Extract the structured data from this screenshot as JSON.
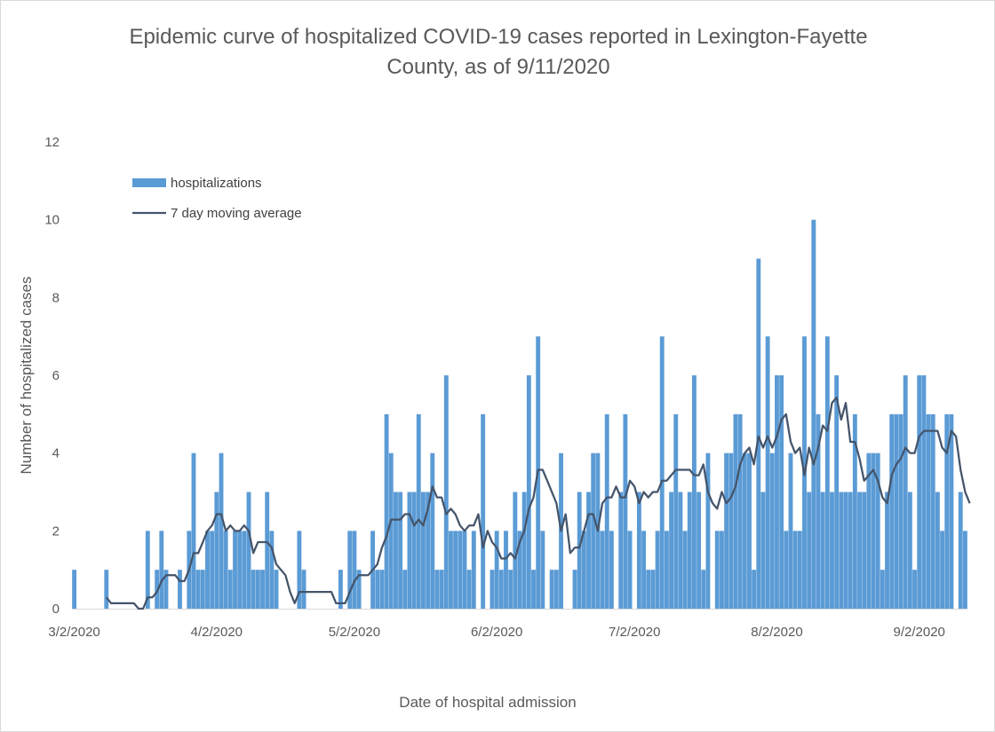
{
  "chart_data": {
    "type": "bar",
    "title_line1": "Epidemic curve of hospitalized COVID-19 cases reported in Lexington-Fayette",
    "title_line2": "County, as of 9/11/2020",
    "xlabel": "Date of hospital admission",
    "ylabel": "Number of hospitalized cases",
    "ylim": [
      0,
      12
    ],
    "yticks": [
      0,
      2,
      4,
      6,
      8,
      10,
      12
    ],
    "xtick_labels": [
      "3/2/2020",
      "4/2/2020",
      "5/2/2020",
      "6/2/2020",
      "7/2/2020",
      "8/2/2020",
      "9/2/2020"
    ],
    "xtick_day_index": [
      0,
      31,
      61,
      92,
      122,
      153,
      184
    ],
    "grid": false,
    "legend": {
      "position": "top-left",
      "entries": [
        "hospitalizations",
        "7 day moving average"
      ]
    },
    "colors": {
      "bars": "#5b9bd5",
      "line": "#44546a"
    },
    "start_date": "3/2/2020",
    "series": [
      {
        "name": "hospitalizations",
        "type": "bar",
        "values": [
          1,
          0,
          0,
          0,
          0,
          0,
          0,
          1,
          0,
          0,
          0,
          0,
          0,
          0,
          0,
          0,
          2,
          0,
          1,
          2,
          1,
          0,
          0,
          1,
          0,
          2,
          4,
          1,
          1,
          2,
          2,
          3,
          4,
          2,
          1,
          2,
          2,
          2,
          3,
          1,
          1,
          1,
          3,
          2,
          1,
          0,
          0,
          0,
          0,
          2,
          1,
          0,
          0,
          0,
          0,
          0,
          0,
          0,
          1,
          0,
          2,
          2,
          1,
          0,
          0,
          2,
          1,
          1,
          5,
          4,
          3,
          3,
          1,
          3,
          3,
          5,
          3,
          3,
          4,
          1,
          1,
          6,
          2,
          2,
          2,
          2,
          1,
          2,
          0,
          5,
          0,
          1,
          2,
          1,
          2,
          1,
          3,
          2,
          3,
          6,
          1,
          7,
          2,
          0,
          1,
          1,
          4,
          0,
          0,
          1,
          3,
          2,
          3,
          4,
          4,
          2,
          5,
          2,
          0,
          3,
          5,
          2,
          0,
          3,
          2,
          1,
          1,
          2,
          7,
          2,
          3,
          5,
          3,
          2,
          3,
          6,
          3,
          1,
          4,
          0,
          2,
          2,
          4,
          4,
          5,
          5,
          4,
          4,
          1,
          9,
          3,
          7,
          4,
          6,
          6,
          2,
          4,
          2,
          2,
          7,
          3,
          10,
          5,
          3,
          7,
          3,
          6,
          3,
          3,
          3,
          5,
          3,
          3,
          4,
          4,
          4,
          1,
          3,
          5,
          5,
          5,
          6,
          3,
          1,
          6,
          6,
          5,
          5,
          3,
          2,
          5,
          5,
          0,
          3,
          2
        ],
        "approximate": true
      },
      {
        "name": "7 day moving average",
        "type": "line",
        "values": [
          null,
          null,
          null,
          null,
          null,
          null,
          null,
          0.29,
          0.14,
          0.14,
          0.14,
          0.14,
          0.14,
          0.14,
          0.0,
          0.0,
          0.29,
          0.29,
          0.43,
          0.71,
          0.86,
          0.86,
          0.86,
          0.71,
          0.71,
          1.0,
          1.43,
          1.43,
          1.71,
          2.0,
          2.14,
          2.43,
          2.43,
          2.0,
          2.14,
          2.0,
          2.0,
          2.14,
          2.0,
          1.43,
          1.71,
          1.71,
          1.71,
          1.57,
          1.14,
          1.0,
          0.86,
          0.43,
          0.14,
          0.43,
          0.43,
          0.43,
          0.43,
          0.43,
          0.43,
          0.43,
          0.43,
          0.14,
          0.14,
          0.14,
          0.43,
          0.71,
          0.86,
          0.86,
          0.86,
          1.0,
          1.14,
          1.57,
          1.86,
          2.29,
          2.29,
          2.29,
          2.43,
          2.43,
          2.14,
          2.29,
          2.14,
          2.57,
          3.14,
          2.86,
          2.86,
          2.43,
          2.57,
          2.43,
          2.14,
          2.0,
          2.14,
          2.14,
          2.43,
          1.57,
          2.0,
          1.71,
          1.57,
          1.29,
          1.29,
          1.43,
          1.29,
          1.71,
          2.0,
          2.57,
          2.86,
          3.57,
          3.57,
          3.29,
          3.0,
          2.71,
          2.0,
          2.43,
          1.43,
          1.57,
          1.57,
          2.0,
          2.43,
          2.43,
          2.0,
          2.71,
          2.86,
          2.86,
          3.14,
          2.86,
          2.86,
          3.29,
          3.14,
          2.71,
          3.0,
          2.86,
          3.0,
          3.0,
          3.29,
          3.29,
          3.43,
          3.57,
          3.57,
          3.57,
          3.57,
          3.43,
          3.43,
          3.71,
          3.0,
          2.71,
          2.57,
          3.0,
          2.71,
          2.86,
          3.14,
          3.71,
          4.0,
          4.14,
          3.71,
          4.43,
          4.14,
          4.43,
          4.14,
          4.43,
          4.86,
          5.0,
          4.29,
          4.0,
          4.14,
          3.43,
          4.14,
          3.71,
          4.14,
          4.71,
          4.57,
          5.29,
          5.43,
          4.86,
          5.29,
          4.29,
          4.29,
          3.86,
          3.29,
          3.43,
          3.57,
          3.29,
          2.86,
          2.71,
          3.43,
          3.71,
          3.86,
          4.14,
          4.0,
          4.0,
          4.43,
          4.57,
          4.57,
          4.57,
          4.57,
          4.14,
          4.0,
          4.57,
          4.43,
          3.57,
          3.0,
          2.71
        ],
        "approximate": true
      }
    ]
  }
}
